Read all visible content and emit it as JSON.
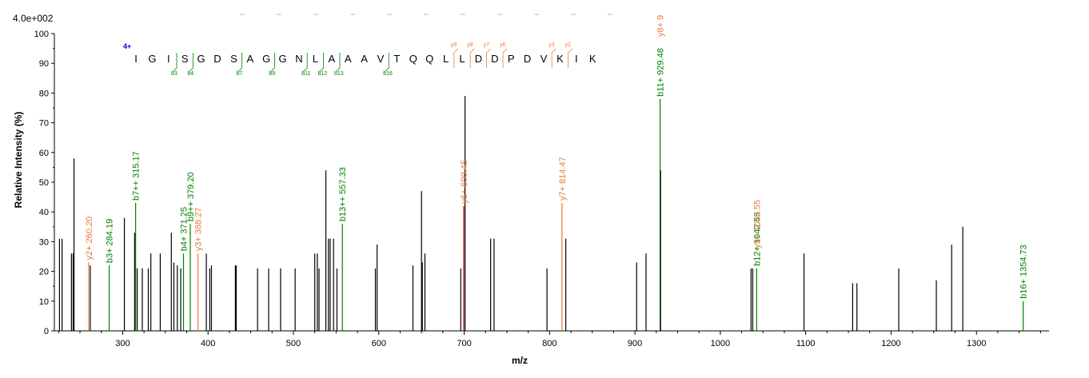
{
  "chart_data": {
    "type": "bar",
    "scale_label": "4.0e+002",
    "xlabel": "m/z",
    "ylabel": "Relative   Intensity (%)",
    "xlim": [
      220,
      1385
    ],
    "ylim": [
      0,
      100
    ],
    "x_ticks": [
      300,
      400,
      500,
      600,
      700,
      800,
      900,
      1000,
      1100,
      1200,
      1300
    ],
    "y_ticks": [
      0,
      10,
      20,
      30,
      40,
      50,
      60,
      70,
      80,
      90,
      100
    ],
    "colors": {
      "b_ion": "#008000",
      "y_ion": "#e87a3c",
      "unlabeled": "#000000",
      "charge": "#0000cc",
      "y6_bar": "#b00000"
    },
    "peaks": [
      {
        "mz": 226,
        "intensity": 31
      },
      {
        "mz": 229,
        "intensity": 31
      },
      {
        "mz": 240,
        "intensity": 26
      },
      {
        "mz": 242,
        "intensity": 26
      },
      {
        "mz": 243,
        "intensity": 58
      },
      {
        "mz": 260.2,
        "intensity": 23,
        "label": "y2+ 260.20",
        "ion": "y"
      },
      {
        "mz": 262,
        "intensity": 22
      },
      {
        "mz": 284.19,
        "intensity": 22,
        "label": "b3+ 284.19",
        "ion": "b"
      },
      {
        "mz": 302,
        "intensity": 38
      },
      {
        "mz": 314,
        "intensity": 33
      },
      {
        "mz": 315.17,
        "intensity": 43,
        "label": "b7++ 315.17",
        "ion": "b"
      },
      {
        "mz": 317,
        "intensity": 21
      },
      {
        "mz": 323,
        "intensity": 21
      },
      {
        "mz": 330,
        "intensity": 21
      },
      {
        "mz": 333,
        "intensity": 26
      },
      {
        "mz": 344,
        "intensity": 26
      },
      {
        "mz": 357,
        "intensity": 33
      },
      {
        "mz": 360,
        "intensity": 23
      },
      {
        "mz": 364,
        "intensity": 22
      },
      {
        "mz": 368,
        "intensity": 21
      },
      {
        "mz": 371.25,
        "intensity": 26,
        "label": "b4+ 371.25",
        "ion": "b"
      },
      {
        "mz": 379.2,
        "intensity": 36,
        "label": "b9++ 379.20",
        "ion": "b"
      },
      {
        "mz": 388.27,
        "intensity": 26,
        "label": "y3+ 388.27",
        "ion": "y"
      },
      {
        "mz": 398,
        "intensity": 26
      },
      {
        "mz": 402,
        "intensity": 21
      },
      {
        "mz": 404,
        "intensity": 22
      },
      {
        "mz": 432,
        "intensity": 22
      },
      {
        "mz": 433,
        "intensity": 22
      },
      {
        "mz": 458,
        "intensity": 21
      },
      {
        "mz": 471,
        "intensity": 21
      },
      {
        "mz": 485,
        "intensity": 21
      },
      {
        "mz": 502,
        "intensity": 21
      },
      {
        "mz": 525,
        "intensity": 26
      },
      {
        "mz": 528,
        "intensity": 26
      },
      {
        "mz": 530,
        "intensity": 21
      },
      {
        "mz": 538,
        "intensity": 54
      },
      {
        "mz": 541,
        "intensity": 31
      },
      {
        "mz": 543,
        "intensity": 31
      },
      {
        "mz": 547,
        "intensity": 31
      },
      {
        "mz": 551,
        "intensity": 21
      },
      {
        "mz": 557.33,
        "intensity": 36,
        "label": "b13++ 557.33",
        "ion": "b"
      },
      {
        "mz": 596,
        "intensity": 21
      },
      {
        "mz": 598,
        "intensity": 29
      },
      {
        "mz": 640,
        "intensity": 22
      },
      {
        "mz": 650,
        "intensity": 47
      },
      {
        "mz": 651,
        "intensity": 23
      },
      {
        "mz": 654,
        "intensity": 26
      },
      {
        "mz": 696,
        "intensity": 21
      },
      {
        "mz": 699.45,
        "intensity": 42,
        "label": "y6+ 699.45",
        "ion": "y"
      },
      {
        "mz": 701,
        "intensity": 79
      },
      {
        "mz": 731,
        "intensity": 31
      },
      {
        "mz": 735,
        "intensity": 31
      },
      {
        "mz": 797,
        "intensity": 21
      },
      {
        "mz": 814.47,
        "intensity": 43,
        "label": "y7+ 814.47",
        "ion": "y"
      },
      {
        "mz": 819,
        "intensity": 31
      },
      {
        "mz": 902,
        "intensity": 23
      },
      {
        "mz": 913,
        "intensity": 26
      },
      {
        "mz": 929.48,
        "intensity": 78,
        "label": "b11+ 929.48",
        "ion": "b"
      },
      {
        "mz": 930,
        "intensity": 54
      },
      {
        "mz": 1036,
        "intensity": 21
      },
      {
        "mz": 1038,
        "intensity": 21
      },
      {
        "mz": 1042.55,
        "intensity": 21,
        "label": "b12+ 1042.55",
        "ion": "b"
      },
      {
        "mz": 1042.55,
        "intensity": 21,
        "label": "y9+ 1042.55",
        "ion": "y",
        "label_offset": 22
      },
      {
        "mz": 1098,
        "intensity": 26
      },
      {
        "mz": 1155,
        "intensity": 16
      },
      {
        "mz": 1160,
        "intensity": 16
      },
      {
        "mz": 1209,
        "intensity": 21
      },
      {
        "mz": 1253,
        "intensity": 17
      },
      {
        "mz": 1271,
        "intensity": 29
      },
      {
        "mz": 1284,
        "intensity": 35
      },
      {
        "mz": 1354.73,
        "intensity": 10,
        "label": "b16+ 1354.73",
        "ion": "b"
      }
    ],
    "top_label": {
      "text": "y8+ 9",
      "ion": "y"
    },
    "sequence": {
      "charge": "4+",
      "residues": [
        "I",
        "G",
        "I",
        "S",
        "G",
        "D",
        "S",
        "A",
        "G",
        "G",
        "N",
        "L",
        "A",
        "A",
        "A",
        "V",
        "T",
        "Q",
        "Q",
        "L",
        "L",
        "D",
        "D",
        "P",
        "D",
        "V",
        "K",
        "I",
        "K"
      ],
      "b_ions": [
        {
          "after": 3,
          "label": "b3"
        },
        {
          "after": 4,
          "label": "b4"
        },
        {
          "after": 7,
          "label": "b7"
        },
        {
          "after": 9,
          "label": "b9"
        },
        {
          "after": 11,
          "label": "b11"
        },
        {
          "after": 12,
          "label": "b12"
        },
        {
          "after": 13,
          "label": "b13"
        },
        {
          "after": 16,
          "label": "b16"
        }
      ],
      "y_ions": [
        {
          "after": 20,
          "label": "y9"
        },
        {
          "after": 21,
          "label": "y8"
        },
        {
          "after": 22,
          "label": "y7"
        },
        {
          "after": 23,
          "label": "y6"
        },
        {
          "after": 26,
          "label": "y3"
        },
        {
          "after": 27,
          "label": "y2"
        }
      ]
    }
  }
}
